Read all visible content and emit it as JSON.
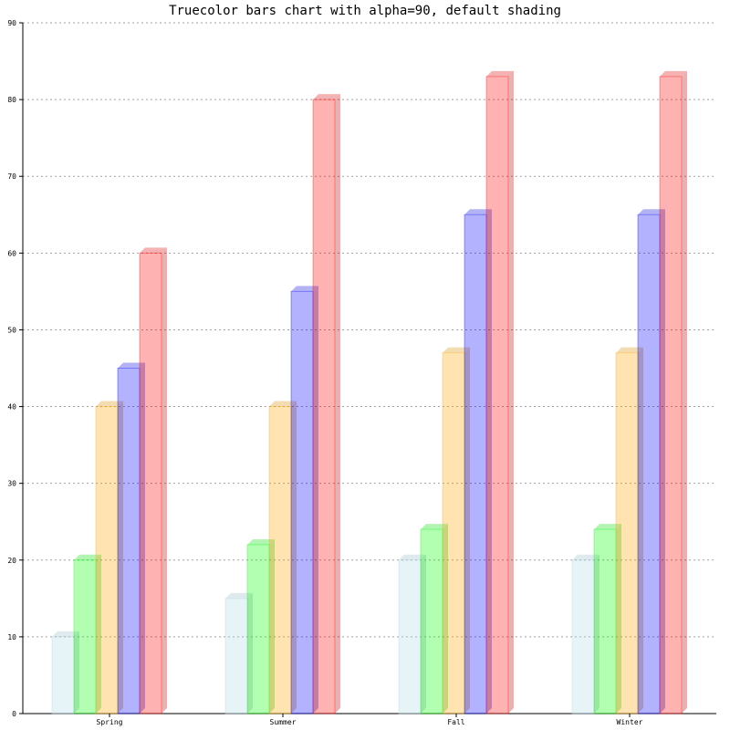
{
  "chart_data": {
    "type": "bar",
    "style": "3d",
    "title": "Truecolor bars chart with alpha=90, default shading",
    "xlabel": "",
    "ylabel": "",
    "categories": [
      "Spring",
      "Summer",
      "Fall",
      "Winter"
    ],
    "series": [
      {
        "values": [
          10,
          15,
          20,
          20
        ],
        "color": "#add8e6"
      },
      {
        "values": [
          20,
          22,
          24,
          24
        ],
        "color": "#00ff00"
      },
      {
        "values": [
          40,
          40,
          47,
          47
        ],
        "color": "#ffa500"
      },
      {
        "values": [
          45,
          55,
          65,
          65
        ],
        "color": "#0000ff"
      },
      {
        "values": [
          60,
          80,
          83,
          83
        ],
        "color": "#ff0000"
      }
    ],
    "ylim": [
      0,
      90
    ],
    "yticks": [
      "0",
      "10",
      "20",
      "30",
      "40",
      "50",
      "60",
      "70",
      "80",
      "90"
    ],
    "grid": true,
    "alpha": 90
  }
}
